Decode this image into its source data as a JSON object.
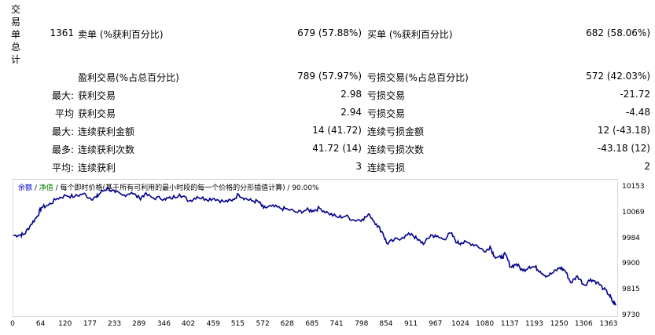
{
  "side_label": [
    "交",
    "易",
    "单",
    "总",
    "计"
  ],
  "stats": {
    "total_trades": "1361",
    "short_label": "卖单 (%获利百分比)",
    "short_value": "679 (57.88%)",
    "long_label": "买单 (%获利百分比)",
    "long_value": "682 (58.06%)",
    "profit_trades_label": "盈利交易(%占总百分比)",
    "profit_trades_value": "789 (57.97%)",
    "loss_trades_label": "亏损交易(%占总百分比)",
    "loss_trades_value": "572 (42.03%)",
    "rows": [
      {
        "prefix": "最大:",
        "l_label": "获利交易",
        "l_value": "2.98",
        "r_label": "亏损交易",
        "r_value": "-21.72"
      },
      {
        "prefix": "平均",
        "l_label": "获利交易",
        "l_value": "2.94",
        "r_label": "亏损交易",
        "r_value": "-4.48"
      },
      {
        "prefix": "最大:",
        "l_label": "连续获利金额",
        "l_value": "14 (41.72)",
        "r_label": "连续亏损金额",
        "r_value": "12 (-43.18)"
      },
      {
        "prefix": "最多:",
        "l_label": "连续获利次数",
        "l_value": "41.72 (14)",
        "r_label": "连续亏损次数",
        "r_value": "-43.18 (12)"
      },
      {
        "prefix": "平均:",
        "l_label": "连续获利",
        "l_value": "3",
        "r_label": "连续亏损",
        "r_value": "2"
      }
    ]
  },
  "chart_legend": {
    "balance": "余额",
    "sep1": " / ",
    "equity": "净值",
    "rest": " / 每个即时价格(基于所有可利用的最小时段的每一个价格的分形插值计算) / 90.00%"
  },
  "colors": {
    "balance_line": "#00008b",
    "axis_text": "#000000",
    "grid": "#d8d8d8"
  },
  "chart_data": {
    "type": "line",
    "title": "",
    "xlabel": "",
    "ylabel": "",
    "x_ticks": [
      "0",
      "64",
      "120",
      "177",
      "233",
      "289",
      "346",
      "402",
      "459",
      "515",
      "572",
      "628",
      "685",
      "741",
      "798",
      "854",
      "911",
      "967",
      "1024",
      "1080",
      "1137",
      "1193",
      "1250",
      "1306",
      "1363"
    ],
    "y_ticks": [
      "10153",
      "10069",
      "9984",
      "9900",
      "9815",
      "9730"
    ],
    "xlim": [
      0,
      1381
    ],
    "ylim": [
      9730,
      10180
    ],
    "series": [
      {
        "color": "#00008b",
        "points": [
          [
            0,
            9996
          ],
          [
            15,
            9998
          ],
          [
            25,
            10000
          ],
          [
            40,
            10032
          ],
          [
            55,
            10060
          ],
          [
            64,
            10088
          ],
          [
            80,
            10096
          ],
          [
            100,
            10118
          ],
          [
            120,
            10128
          ],
          [
            140,
            10124
          ],
          [
            160,
            10134
          ],
          [
            177,
            10118
          ],
          [
            190,
            10122
          ],
          [
            200,
            10138
          ],
          [
            215,
            10152
          ],
          [
            233,
            10138
          ],
          [
            250,
            10128
          ],
          [
            270,
            10138
          ],
          [
            289,
            10118
          ],
          [
            300,
            10132
          ],
          [
            320,
            10120
          ],
          [
            346,
            10118
          ],
          [
            360,
            10118
          ],
          [
            380,
            10132
          ],
          [
            402,
            10110
          ],
          [
            420,
            10124
          ],
          [
            440,
            10116
          ],
          [
            459,
            10118
          ],
          [
            480,
            10108
          ],
          [
            500,
            10110
          ],
          [
            515,
            10132
          ],
          [
            530,
            10118
          ],
          [
            545,
            10110
          ],
          [
            560,
            10108
          ],
          [
            572,
            10086
          ],
          [
            590,
            10092
          ],
          [
            610,
            10086
          ],
          [
            628,
            10082
          ],
          [
            650,
            10072
          ],
          [
            670,
            10080
          ],
          [
            685,
            10078
          ],
          [
            700,
            10086
          ],
          [
            720,
            10070
          ],
          [
            741,
            10056
          ],
          [
            760,
            10060
          ],
          [
            780,
            10046
          ],
          [
            798,
            10050
          ],
          [
            815,
            10064
          ],
          [
            830,
            10034
          ],
          [
            845,
            10004
          ],
          [
            854,
            9970
          ],
          [
            870,
            9980
          ],
          [
            890,
            9990
          ],
          [
            911,
            10002
          ],
          [
            925,
            9980
          ],
          [
            940,
            9970
          ],
          [
            955,
            9998
          ],
          [
            967,
            9992
          ],
          [
            985,
            9984
          ],
          [
            1000,
            10004
          ],
          [
            1015,
            9972
          ],
          [
            1024,
            9972
          ],
          [
            1040,
            9972
          ],
          [
            1060,
            9964
          ],
          [
            1080,
            9942
          ],
          [
            1090,
            9960
          ],
          [
            1100,
            9928
          ],
          [
            1115,
            9922
          ],
          [
            1125,
            9934
          ],
          [
            1137,
            9892
          ],
          [
            1150,
            9902
          ],
          [
            1165,
            9880
          ],
          [
            1180,
            9894
          ],
          [
            1193,
            9892
          ],
          [
            1205,
            9878
          ],
          [
            1220,
            9862
          ],
          [
            1235,
            9874
          ],
          [
            1250,
            9890
          ],
          [
            1262,
            9880
          ],
          [
            1275,
            9840
          ],
          [
            1290,
            9862
          ],
          [
            1306,
            9832
          ],
          [
            1320,
            9852
          ],
          [
            1335,
            9842
          ],
          [
            1350,
            9820
          ],
          [
            1363,
            9800
          ],
          [
            1370,
            9778
          ],
          [
            1378,
            9766
          ]
        ]
      }
    ]
  }
}
